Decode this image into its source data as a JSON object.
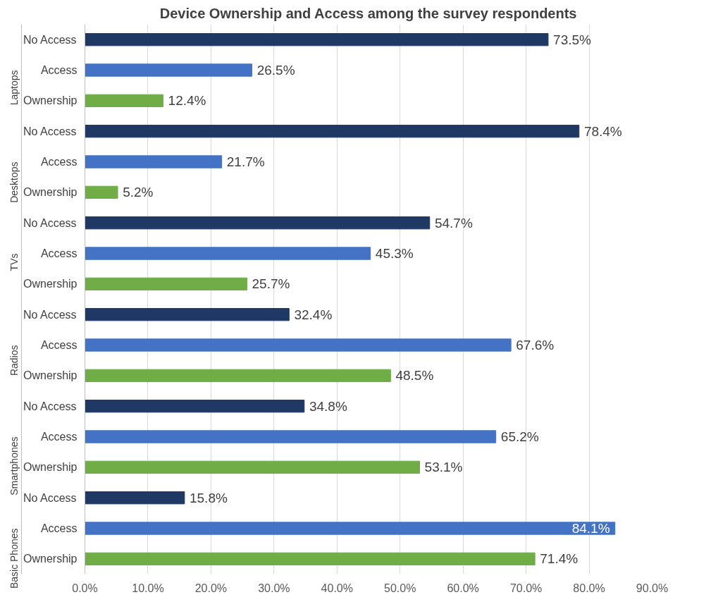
{
  "chart_data": {
    "type": "bar",
    "orientation": "horizontal",
    "title": "Device Ownership and Access among the survey respondents",
    "categories": [
      "No Access",
      "Access",
      "Ownership",
      "No Access",
      "Access",
      "Ownership",
      "No Access",
      "Access",
      "Ownership",
      "No Access",
      "Access",
      "Ownership",
      "No Access",
      "Access",
      "Ownership",
      "No Access",
      "Access",
      "Ownership"
    ],
    "values": [
      73.5,
      26.5,
      12.4,
      78.4,
      21.7,
      5.2,
      54.7,
      45.3,
      25.7,
      32.4,
      67.6,
      48.5,
      34.8,
      65.2,
      53.1,
      15.8,
      84.1,
      71.4
    ],
    "value_labels": [
      "73.5%",
      "26.5%",
      "12.4%",
      "78.4%",
      "21.7%",
      "5.2%",
      "54.7%",
      "45.3%",
      "25.7%",
      "32.4%",
      "67.6%",
      "48.5%",
      "34.8%",
      "65.2%",
      "53.1%",
      "15.8%",
      "84.1%",
      "71.4%"
    ],
    "colors": [
      "#1f3864",
      "#4472c4",
      "#70ad47",
      "#1f3864",
      "#4472c4",
      "#70ad47",
      "#1f3864",
      "#4472c4",
      "#70ad47",
      "#1f3864",
      "#4472c4",
      "#70ad47",
      "#1f3864",
      "#4472c4",
      "#70ad47",
      "#1f3864",
      "#4472c4",
      "#70ad47"
    ],
    "annotations": [
      "Laptops",
      "Desktops",
      "TVs",
      "Radios",
      "Smartphones",
      "Basic Phones"
    ],
    "xlim": [
      0,
      90
    ],
    "xticks": [
      {
        "value": 0,
        "label": "0.0%"
      },
      {
        "value": 10,
        "label": "10.0%"
      },
      {
        "value": 20,
        "label": "20.0%"
      },
      {
        "value": 30,
        "label": "30.0%"
      },
      {
        "value": 40,
        "label": "40.0%"
      },
      {
        "value": 50,
        "label": "50.0%"
      },
      {
        "value": 60,
        "label": "60.0%"
      },
      {
        "value": 70,
        "label": "70.0%"
      },
      {
        "value": 80,
        "label": "80.0%"
      },
      {
        "value": 90,
        "label": "90.0%"
      }
    ],
    "grid": "x"
  }
}
